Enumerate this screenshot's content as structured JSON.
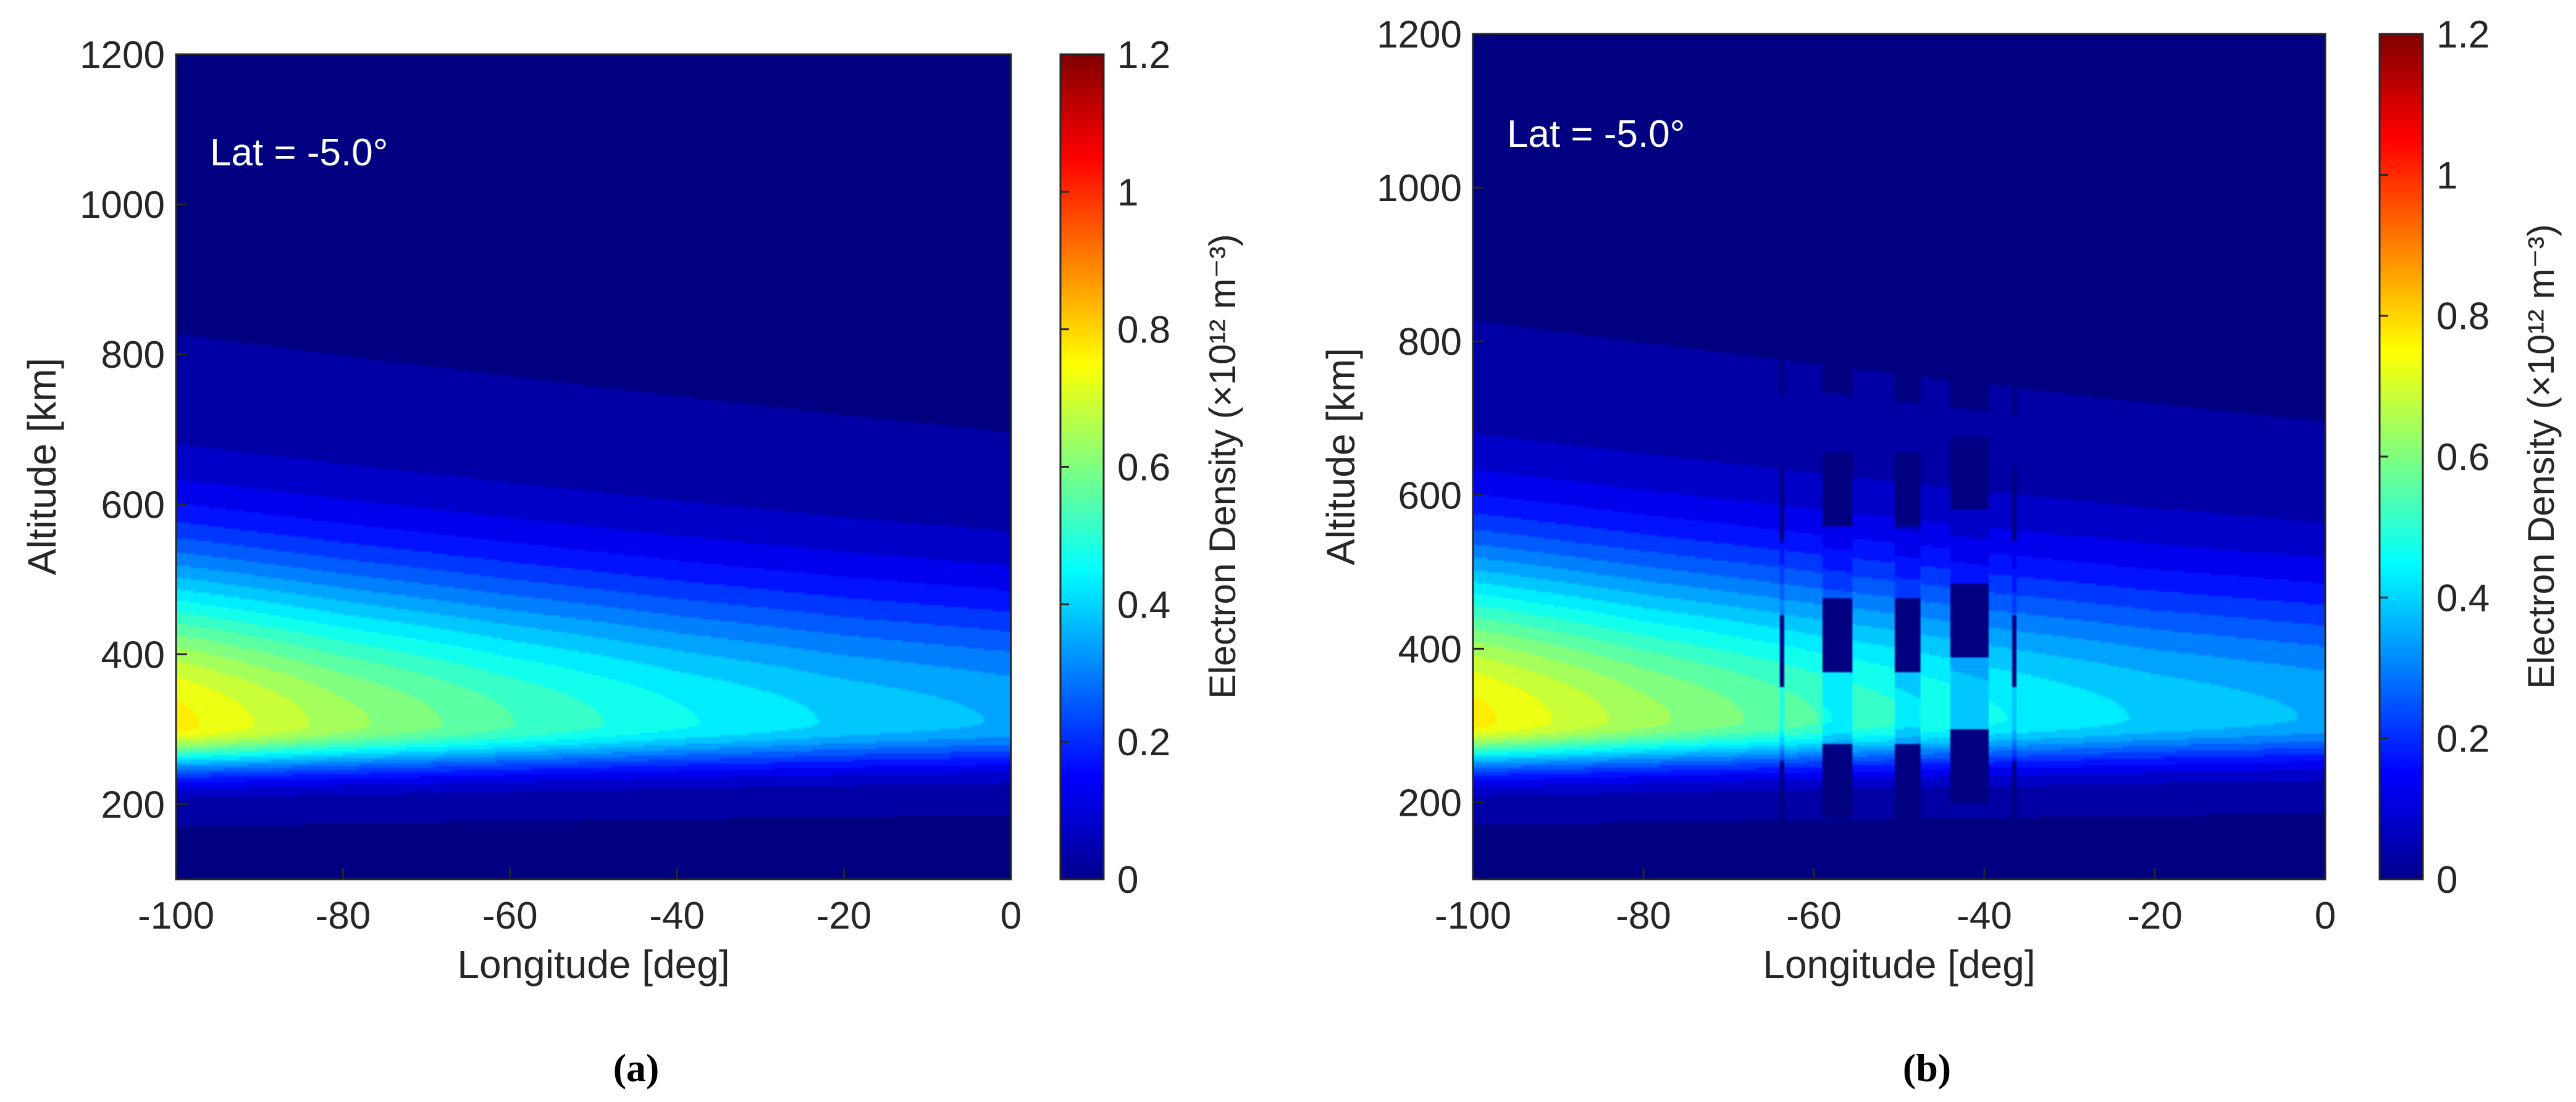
{
  "chart_data": [
    {
      "type": "heatmap",
      "panel_label": "(a)",
      "annotation": "Lat = -5.0°",
      "xlabel": "Longitude [deg]",
      "ylabel": "Altitude [km]",
      "colorbar_label": "Electron Density (×10¹² m⁻³)",
      "xlim": [
        -100,
        0
      ],
      "ylim": [
        100,
        1200
      ],
      "clim": [
        0,
        1.2
      ],
      "xticks": [
        "-100",
        "-80",
        "-60",
        "-40",
        "-20",
        "0"
      ],
      "yticks": [
        "200",
        "400",
        "600",
        "800",
        "1000",
        "1200"
      ],
      "cticks": [
        "0",
        "0.2",
        "0.4",
        "0.6",
        "0.8",
        "1",
        "1.2"
      ],
      "colormap": "jet",
      "peak_altitude_km": 310,
      "peak_density_by_longitude": {
        "x": [
          -100,
          -80,
          -60,
          -40,
          -20,
          0
        ],
        "values": [
          0.75,
          0.62,
          0.52,
          0.44,
          0.38,
          0.34
        ]
      },
      "depletions": []
    },
    {
      "type": "heatmap",
      "panel_label": "(b)",
      "annotation": "Lat = -5.0°",
      "xlabel": "Longitude [deg]",
      "ylabel": "Altitude [km]",
      "colorbar_label": "Electron Density (×10¹² m⁻³)",
      "xlim": [
        -100,
        0
      ],
      "ylim": [
        100,
        1200
      ],
      "clim": [
        0,
        1.2
      ],
      "xticks": [
        "-100",
        "-80",
        "-60",
        "-40",
        "-20",
        "0"
      ],
      "yticks": [
        "200",
        "400",
        "600",
        "800",
        "1000",
        "1200"
      ],
      "cticks": [
        "0",
        "0.2",
        "0.4",
        "0.6",
        "0.8",
        "1",
        "1.2"
      ],
      "colormap": "jet",
      "peak_altitude_km": 310,
      "peak_density_by_longitude": {
        "x": [
          -100,
          -80,
          -60,
          -40,
          -20,
          0
        ],
        "values": [
          0.75,
          0.62,
          0.52,
          0.44,
          0.38,
          0.34
        ]
      },
      "depletions": [
        {
          "lon_min": -64.0,
          "lon_max": -63.4,
          "alt_min": 160,
          "alt_max": 850
        },
        {
          "lon_min": -59.0,
          "lon_max": -55.5,
          "alt_min": 180,
          "alt_max": 800
        },
        {
          "lon_min": -50.5,
          "lon_max": -47.5,
          "alt_min": 180,
          "alt_max": 850
        },
        {
          "lon_min": -44.0,
          "lon_max": -39.5,
          "alt_min": 200,
          "alt_max": 800
        },
        {
          "lon_min": -36.8,
          "lon_max": -36.2,
          "alt_min": 160,
          "alt_max": 850
        }
      ]
    }
  ]
}
